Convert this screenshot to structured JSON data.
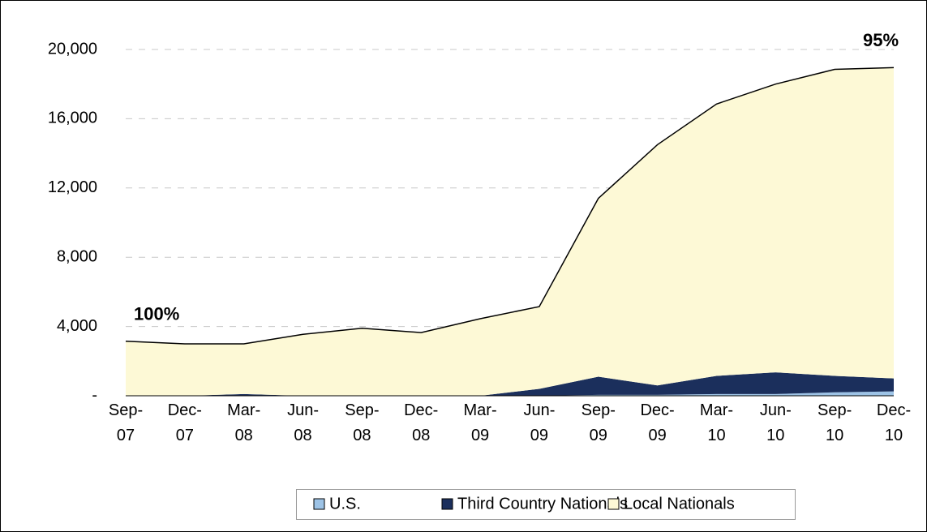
{
  "chart_data": {
    "type": "stacked_area",
    "categories": [
      "Sep-07",
      "Dec-07",
      "Mar-08",
      "Jun-08",
      "Sep-08",
      "Dec-08",
      "Mar-09",
      "Jun-09",
      "Sep-09",
      "Dec-09",
      "Mar-10",
      "Jun-10",
      "Sep-10",
      "Dec-10"
    ],
    "series": [
      {
        "name": "U.S.",
        "color": "#9dc3e6",
        "values": [
          0,
          0,
          0,
          0,
          0,
          0,
          0,
          0,
          50,
          50,
          100,
          100,
          200,
          250
        ]
      },
      {
        "name": "Third Country Nationals",
        "color": "#1b2f5c",
        "values": [
          0,
          0,
          100,
          0,
          0,
          0,
          0,
          400,
          1050,
          550,
          1050,
          1250,
          950,
          750
        ]
      },
      {
        "name": "Local Nationals",
        "color": "#fdf9d6",
        "values": [
          3150,
          3000,
          2900,
          3550,
          3900,
          3650,
          4450,
          4750,
          10300,
          13900,
          15700,
          16650,
          17700,
          17950
        ]
      }
    ],
    "ylim": [
      0,
      20000
    ],
    "yticks": [
      {
        "value": 0,
        "label": "-"
      },
      {
        "value": 4000,
        "label": "4,000"
      },
      {
        "value": 8000,
        "label": "8,000"
      },
      {
        "value": 12000,
        "label": "12,000"
      },
      {
        "value": 16000,
        "label": "16,000"
      },
      {
        "value": 20000,
        "label": "20,000"
      }
    ],
    "grid": true,
    "legend": "bottom",
    "annotations": [
      {
        "text": "100%",
        "category": 0
      },
      {
        "text": "95%",
        "category": 13
      }
    ]
  }
}
